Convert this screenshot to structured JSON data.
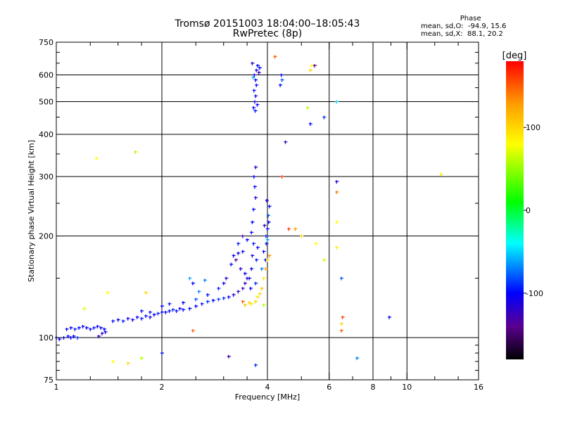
{
  "chart_data": {
    "type": "scatter",
    "title": "Tromsø 20151003 18:04:00–18:05:43",
    "subtitle": "RwPretec (8p)",
    "xlabel": "Frequency [MHz]",
    "ylabel": "Stationary phase Virtual Height [km]",
    "xscale": "log",
    "yscale": "log",
    "xlim": [
      1,
      16
    ],
    "ylim": [
      75,
      750
    ],
    "xticks": [
      1,
      2,
      4,
      6,
      8,
      10,
      16
    ],
    "xtick_labels": [
      "1",
      "2",
      "4",
      "6",
      "8",
      "10",
      "16"
    ],
    "yticks": [
      75,
      100,
      200,
      300,
      400,
      500,
      600,
      750
    ],
    "ytick_labels": [
      "75",
      "100",
      "200",
      "300",
      "400",
      "500",
      "600",
      "750"
    ],
    "xgrid": [
      2,
      4,
      6,
      8,
      10
    ],
    "ygrid": [
      100,
      200,
      300,
      400,
      500,
      600
    ],
    "grid": true,
    "stats": {
      "heading": "Phase",
      "o_line": "mean, sd,O:  -94.9, 15.6",
      "x_line": "mean, sd,X:  88.1, 20.2"
    },
    "colorbar": {
      "label": "[deg]",
      "range": [
        -180,
        180
      ],
      "ticks": [
        100,
        0,
        -100
      ],
      "tick_labels": [
        "100",
        "0",
        "-100"
      ],
      "stops": [
        [
          -180,
          "#000000"
        ],
        [
          -140,
          "#5a0090"
        ],
        [
          -100,
          "#0000ff"
        ],
        [
          -40,
          "#00ffff"
        ],
        [
          10,
          "#00ff00"
        ],
        [
          80,
          "#ffff00"
        ],
        [
          130,
          "#ff9900"
        ],
        [
          180,
          "#ff0000"
        ]
      ]
    },
    "points_format": [
      "freq_MHz",
      "height_km",
      "phase_deg"
    ],
    "points": [
      [
        1.0,
        100,
        -105
      ],
      [
        1.02,
        99,
        -100
      ],
      [
        1.05,
        100,
        -110
      ],
      [
        1.08,
        101,
        -95
      ],
      [
        1.1,
        100,
        -105
      ],
      [
        1.12,
        101,
        -100
      ],
      [
        1.15,
        100,
        -90
      ],
      [
        1.07,
        106,
        -100
      ],
      [
        1.1,
        107,
        -110
      ],
      [
        1.13,
        106,
        -95
      ],
      [
        1.16,
        107,
        -100
      ],
      [
        1.19,
        108,
        -105
      ],
      [
        1.22,
        107,
        -100
      ],
      [
        1.25,
        106,
        -110
      ],
      [
        1.28,
        107,
        -95
      ],
      [
        1.31,
        108,
        -100
      ],
      [
        1.34,
        107,
        -105
      ],
      [
        1.37,
        106,
        -100
      ],
      [
        1.32,
        101,
        -125
      ],
      [
        1.35,
        103,
        -120
      ],
      [
        1.38,
        104,
        -115
      ],
      [
        1.45,
        112,
        -100
      ],
      [
        1.5,
        113,
        -105
      ],
      [
        1.55,
        112,
        -95
      ],
      [
        1.6,
        114,
        -100
      ],
      [
        1.65,
        113,
        -110
      ],
      [
        1.7,
        115,
        -100
      ],
      [
        1.75,
        114,
        -95
      ],
      [
        1.8,
        116,
        -100
      ],
      [
        1.85,
        115,
        -105
      ],
      [
        1.9,
        117,
        -100
      ],
      [
        1.95,
        118,
        -95
      ],
      [
        2.0,
        119,
        -100
      ],
      [
        2.05,
        119,
        -105
      ],
      [
        2.1,
        120,
        -100
      ],
      [
        2.15,
        121,
        -90
      ],
      [
        2.2,
        120,
        -100
      ],
      [
        2.25,
        122,
        -105
      ],
      [
        2.3,
        121,
        -95
      ],
      [
        2.4,
        122,
        -100
      ],
      [
        2.5,
        124,
        -100
      ],
      [
        2.6,
        126,
        -95
      ],
      [
        2.7,
        128,
        -90
      ],
      [
        2.8,
        129,
        -100
      ],
      [
        2.9,
        130,
        -85
      ],
      [
        3.0,
        131,
        -90
      ],
      [
        3.1,
        132,
        -100
      ],
      [
        3.2,
        134,
        -110
      ],
      [
        3.3,
        137,
        -120
      ],
      [
        3.4,
        140,
        -130
      ],
      [
        3.45,
        145,
        -125
      ],
      [
        3.5,
        150,
        -120
      ],
      [
        1.75,
        120,
        -100
      ],
      [
        1.85,
        119,
        -95
      ],
      [
        2.0,
        124,
        -100
      ],
      [
        2.1,
        126,
        -95
      ],
      [
        2.3,
        127,
        -100
      ],
      [
        2.5,
        130,
        -80
      ],
      [
        2.55,
        137,
        -70
      ],
      [
        2.7,
        134,
        -100
      ],
      [
        2.9,
        140,
        -95
      ],
      [
        3.0,
        145,
        -100
      ],
      [
        3.05,
        150,
        -110
      ],
      [
        2.4,
        150,
        -60
      ],
      [
        2.45,
        145,
        -100
      ],
      [
        2.65,
        148,
        -70
      ],
      [
        3.6,
        160,
        -100
      ],
      [
        3.62,
        175,
        -110
      ],
      [
        3.65,
        190,
        -95
      ],
      [
        3.6,
        205,
        -100
      ],
      [
        3.62,
        220,
        -105
      ],
      [
        3.65,
        240,
        -100
      ],
      [
        3.7,
        260,
        -110
      ],
      [
        3.68,
        280,
        -100
      ],
      [
        3.66,
        300,
        -105
      ],
      [
        3.7,
        320,
        -115
      ],
      [
        3.72,
        170,
        -95
      ],
      [
        3.75,
        185,
        -100
      ],
      [
        3.58,
        140,
        -100
      ],
      [
        3.55,
        150,
        -105
      ],
      [
        3.7,
        145,
        -90
      ],
      [
        3.95,
        170,
        -100
      ],
      [
        3.97,
        190,
        -95
      ],
      [
        4.0,
        210,
        -100
      ],
      [
        4.02,
        230,
        -80
      ],
      [
        4.05,
        245,
        -100
      ],
      [
        3.98,
        255,
        -110
      ],
      [
        3.96,
        200,
        -90
      ],
      [
        3.9,
        180,
        -100
      ],
      [
        3.85,
        160,
        -70
      ],
      [
        4.0,
        195,
        -60
      ],
      [
        4.03,
        220,
        -100
      ],
      [
        3.92,
        215,
        -120
      ],
      [
        3.2,
        175,
        -100
      ],
      [
        3.3,
        178,
        -110
      ],
      [
        3.4,
        180,
        -100
      ],
      [
        3.3,
        190,
        -95
      ],
      [
        3.4,
        200,
        -130
      ],
      [
        3.5,
        195,
        -100
      ],
      [
        3.35,
        160,
        -120
      ],
      [
        3.45,
        155,
        -100
      ],
      [
        3.25,
        170,
        -140
      ],
      [
        3.15,
        165,
        -100
      ],
      [
        3.45,
        125,
        110
      ],
      [
        3.55,
        127,
        100
      ],
      [
        3.6,
        126,
        90
      ],
      [
        3.7,
        128,
        100
      ],
      [
        3.75,
        132,
        95
      ],
      [
        3.8,
        135,
        100
      ],
      [
        3.85,
        140,
        110
      ],
      [
        3.9,
        150,
        90
      ],
      [
        3.95,
        160,
        120
      ],
      [
        4.0,
        170,
        100
      ],
      [
        4.05,
        175,
        130
      ],
      [
        3.4,
        128,
        150
      ],
      [
        3.9,
        125,
        60
      ],
      [
        3.65,
        480,
        -100
      ],
      [
        3.68,
        500,
        -110
      ],
      [
        3.7,
        520,
        -100
      ],
      [
        3.66,
        540,
        -95
      ],
      [
        3.72,
        560,
        -100
      ],
      [
        3.7,
        580,
        -105
      ],
      [
        3.67,
        600,
        -100
      ],
      [
        3.72,
        620,
        -110
      ],
      [
        3.75,
        640,
        -100
      ],
      [
        3.62,
        650,
        -120
      ],
      [
        3.8,
        630,
        -100
      ],
      [
        3.69,
        470,
        -95
      ],
      [
        3.74,
        490,
        -100
      ],
      [
        3.64,
        590,
        -60
      ],
      [
        3.78,
        610,
        -130
      ],
      [
        4.35,
        560,
        -100
      ],
      [
        4.4,
        580,
        -80
      ],
      [
        4.38,
        600,
        -100
      ],
      [
        5.35,
        640,
        80
      ],
      [
        5.3,
        620,
        100
      ],
      [
        5.2,
        480,
        60
      ],
      [
        5.45,
        640,
        -140
      ],
      [
        4.2,
        680,
        150
      ],
      [
        1.3,
        340,
        80
      ],
      [
        1.68,
        355,
        60
      ],
      [
        6.3,
        500,
        -50
      ],
      [
        6.3,
        290,
        -110
      ],
      [
        6.3,
        270,
        140
      ],
      [
        5.8,
        450,
        -90
      ],
      [
        5.3,
        430,
        -100
      ],
      [
        4.4,
        300,
        160
      ],
      [
        4.5,
        380,
        -120
      ],
      [
        12.5,
        305,
        90
      ],
      [
        6.5,
        150,
        -80
      ],
      [
        6.5,
        110,
        100
      ],
      [
        6.5,
        105,
        150
      ],
      [
        6.55,
        115,
        160
      ],
      [
        7.2,
        87,
        -70
      ],
      [
        8.9,
        115,
        -100
      ],
      [
        1.45,
        85,
        80
      ],
      [
        1.6,
        84,
        100
      ],
      [
        1.75,
        87,
        60
      ],
      [
        2.0,
        90,
        -100
      ],
      [
        3.1,
        88,
        -130
      ],
      [
        3.7,
        83,
        -90
      ],
      [
        2.45,
        105,
        150
      ],
      [
        4.8,
        210,
        130
      ],
      [
        5.0,
        200,
        100
      ],
      [
        5.5,
        190,
        80
      ],
      [
        5.8,
        170,
        70
      ],
      [
        4.6,
        210,
        160
      ],
      [
        6.3,
        220,
        80
      ],
      [
        6.3,
        185,
        90
      ],
      [
        1.2,
        122,
        70
      ],
      [
        1.4,
        136,
        80
      ],
      [
        1.8,
        136,
        100
      ]
    ]
  }
}
